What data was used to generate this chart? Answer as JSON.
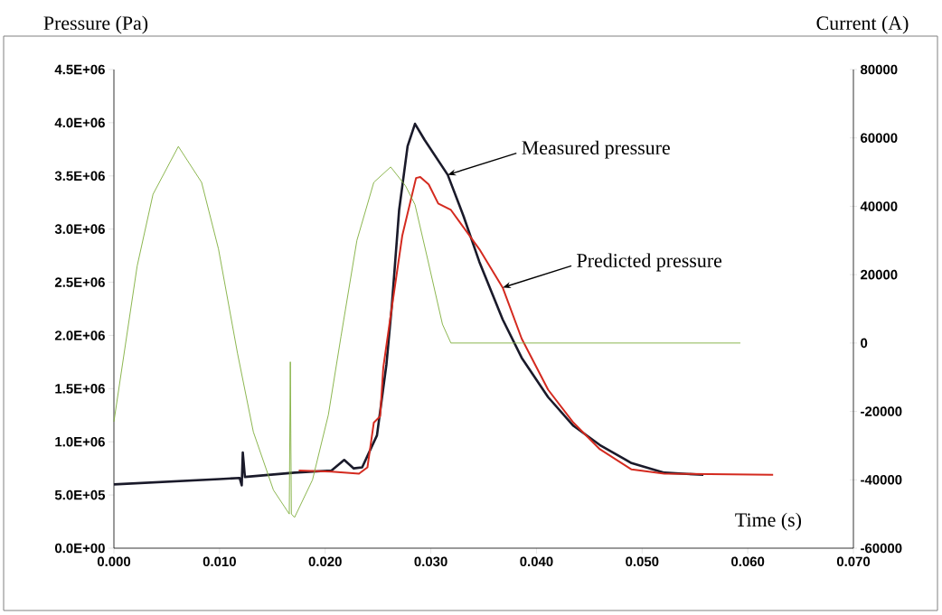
{
  "chart_data": {
    "type": "line",
    "xlabel": "Time (s)",
    "ylabel": "Pressure (Pa)",
    "y2label": "Current (A)",
    "xlim": [
      0,
      0.07
    ],
    "xticks": [
      {
        "value": 0,
        "label": "0.000"
      },
      {
        "value": 0.01,
        "label": "0.010"
      },
      {
        "value": 0.02,
        "label": "0.020"
      },
      {
        "value": 0.03,
        "label": "0.030"
      },
      {
        "value": 0.04,
        "label": "0.040"
      },
      {
        "value": 0.05,
        "label": "0.050"
      },
      {
        "value": 0.06,
        "label": "0.060"
      },
      {
        "value": 0.07,
        "label": "0.070"
      }
    ],
    "ylim": [
      0,
      4500000
    ],
    "yticks": [
      {
        "value": 0,
        "label": "0.0E+00"
      },
      {
        "value": 500000,
        "label": "5.0E+05"
      },
      {
        "value": 1000000,
        "label": "1.0E+06"
      },
      {
        "value": 1500000,
        "label": "1.5E+06"
      },
      {
        "value": 2000000,
        "label": "2.0E+06"
      },
      {
        "value": 2500000,
        "label": "2.5E+06"
      },
      {
        "value": 3000000,
        "label": "3.0E+06"
      },
      {
        "value": 3500000,
        "label": "3.5E+06"
      },
      {
        "value": 4000000,
        "label": "4.0E+06"
      },
      {
        "value": 4500000,
        "label": "4.5E+06"
      }
    ],
    "y2lim": [
      -60000,
      80000
    ],
    "y2ticks": [
      -60000,
      -40000,
      -20000,
      0,
      20000,
      40000,
      60000,
      80000
    ],
    "series": [
      {
        "color": "#7fae3c",
        "axis": "y2",
        "x": [
          0,
          0.0022,
          0.0037,
          0.0061,
          0.0083,
          0.0099,
          0.0117,
          0.0132,
          0.0151,
          0.0166,
          0.0167,
          0.0168,
          0.0171,
          0.0188,
          0.0203,
          0.0215,
          0.023,
          0.0246,
          0.0262,
          0.0276,
          0.0285,
          0.0297,
          0.0311,
          0.0319,
          0.0593
        ],
        "values": [
          -23000,
          22500,
          43500,
          57500,
          47000,
          27500,
          -3000,
          -26000,
          -43000,
          -50000,
          -5500,
          -50000,
          -51000,
          -40000,
          -21000,
          2000,
          30000,
          47000,
          51500,
          46000,
          40500,
          24500,
          5500,
          0,
          0
        ]
      },
      {
        "color": "#1a1a2a",
        "x": [
          0,
          0.01,
          0.0119,
          0.0121,
          0.0122,
          0.0124,
          0.0171,
          0.0206,
          0.0218,
          0.0227,
          0.0235,
          0.0249,
          0.0258,
          0.0263,
          0.027,
          0.0278,
          0.0285,
          0.0294,
          0.0316,
          0.0331,
          0.0346,
          0.0368,
          0.0386,
          0.0411,
          0.0435,
          0.046,
          0.049,
          0.0521,
          0.0558
        ],
        "values": [
          600000,
          650000,
          660000,
          590000,
          900000,
          670000,
          710000,
          730000,
          830000,
          750000,
          760000,
          1060000,
          1730000,
          2270000,
          3180000,
          3780000,
          3990000,
          3840000,
          3510000,
          3120000,
          2690000,
          2150000,
          1790000,
          1420000,
          1150000,
          970000,
          800000,
          710000,
          690000
        ]
      },
      {
        "color": "#d42a1f",
        "x": [
          0.0175,
          0.0206,
          0.0232,
          0.024,
          0.0246,
          0.0252,
          0.0255,
          0.0261,
          0.0273,
          0.0286,
          0.029,
          0.0298,
          0.0307,
          0.0319,
          0.0346,
          0.0368,
          0.0386,
          0.0411,
          0.0435,
          0.046,
          0.049,
          0.0521,
          0.0624
        ],
        "values": [
          730000,
          720000,
          700000,
          760000,
          1180000,
          1240000,
          1700000,
          2120000,
          2940000,
          3480000,
          3490000,
          3420000,
          3240000,
          3180000,
          2810000,
          2450000,
          1970000,
          1490000,
          1180000,
          930000,
          740000,
          700000,
          690000
        ]
      }
    ],
    "annotations": [
      {
        "text": "Measured pressure",
        "x": 0.0316,
        "y": 3510000
      },
      {
        "text": "Predicted pressure",
        "x": 0.0368,
        "y": 2450000
      }
    ]
  }
}
